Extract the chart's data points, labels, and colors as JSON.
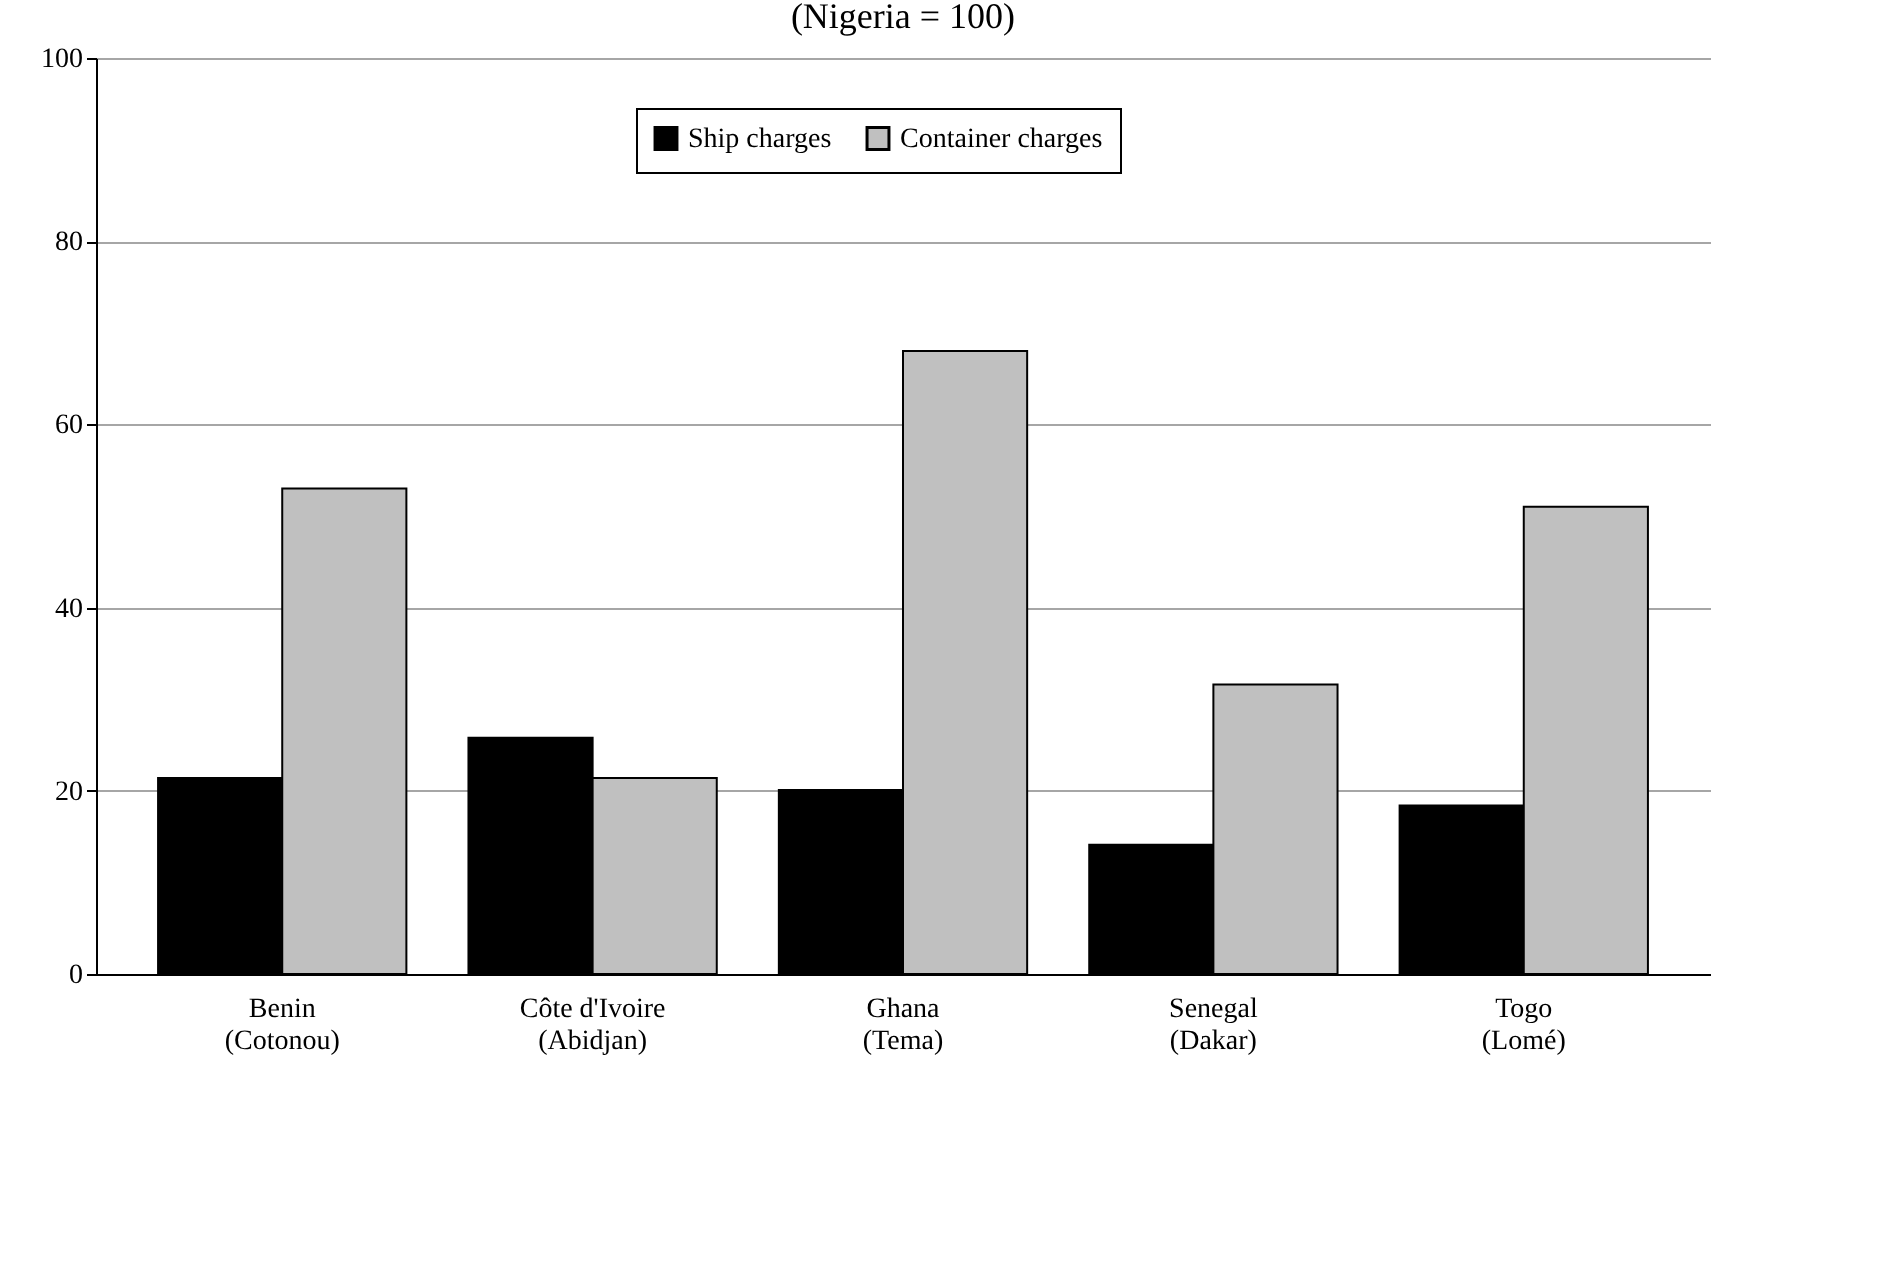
{
  "chart_data": {
    "type": "bar",
    "title": "(Nigeria = 100)",
    "categories": [
      "Benin\n(Cotonou)",
      "Côte d'Ivoire\n(Abidjan)",
      "Ghana\n(Tema)",
      "Senegal\n(Dakar)",
      "Togo\n(Lomé)"
    ],
    "series": [
      {
        "name": "Ship charges",
        "color": "#000000",
        "values": [
          21.4,
          25.8,
          20.1,
          14.1,
          18.4
        ]
      },
      {
        "name": "Container charges",
        "color": "#c0c0c0",
        "values": [
          53,
          21.4,
          68,
          31.6,
          51
        ]
      }
    ],
    "ylim": [
      0,
      100
    ],
    "yticks": [
      0,
      20,
      40,
      60,
      80,
      100
    ],
    "grid": "y",
    "legend": "top"
  }
}
